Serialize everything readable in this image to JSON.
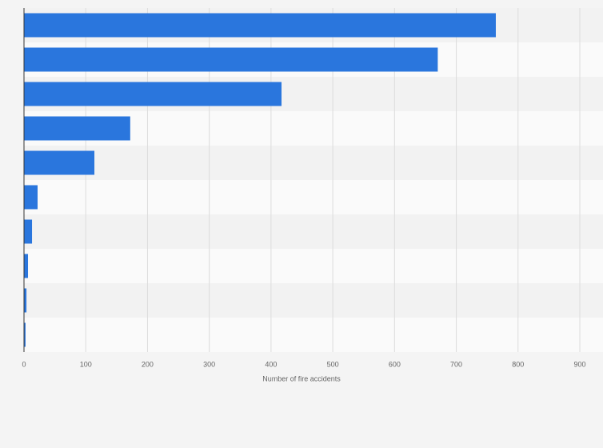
{
  "chart_data": {
    "type": "hbar",
    "categories": [
      null,
      null,
      null,
      null,
      null,
      null,
      null,
      null,
      null,
      null
    ],
    "values": [
      764,
      670,
      417,
      172,
      114,
      22,
      13,
      6.5,
      4,
      2.5
    ],
    "color": "#2a76dd",
    "xlabel": "Number of fire accidents",
    "xlim": [
      0,
      900
    ],
    "xticks": [
      0,
      100,
      200,
      300,
      400,
      500,
      600,
      700,
      800,
      900
    ],
    "grid": true
  }
}
